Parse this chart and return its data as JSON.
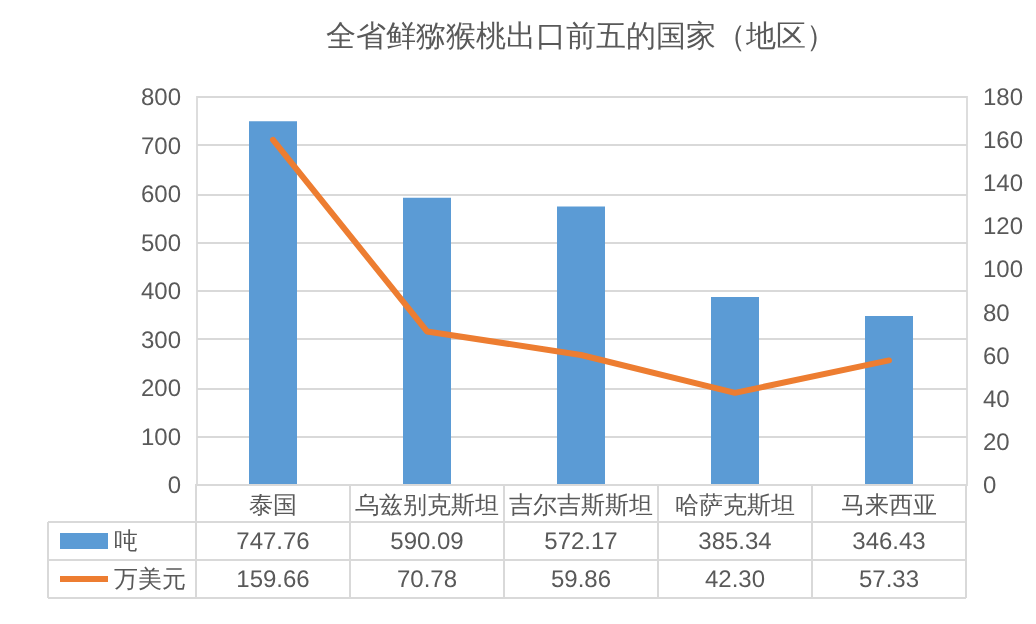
{
  "chart_data": {
    "type": "bar",
    "title": "全省鲜猕猴桃出口前五的国家（地区）",
    "categories": [
      "泰国",
      "乌兹别克斯坦",
      "吉尔吉斯斯坦",
      "哈萨克斯坦",
      "马来西亚"
    ],
    "series": [
      {
        "name": "吨",
        "color": "#5b9bd5",
        "values": [
          747.76,
          590.09,
          572.17,
          385.34,
          346.43
        ],
        "value_labels": [
          "747.76",
          "590.09",
          "572.17",
          "385.34",
          "346.43"
        ]
      },
      {
        "name": "万美元",
        "type": "line",
        "axis": "y2",
        "color": "#ed7d31",
        "values": [
          159.66,
          70.78,
          59.86,
          42.3,
          57.33
        ],
        "value_labels": [
          "159.66",
          "70.78",
          "59.86",
          "42.30",
          "57.33"
        ]
      }
    ],
    "ylim": [
      0,
      800
    ],
    "yticks": [
      0,
      100,
      200,
      300,
      400,
      500,
      600,
      700,
      800
    ],
    "y2lim": [
      0,
      180
    ],
    "y2ticks": [
      0,
      20,
      40,
      60,
      80,
      100,
      120,
      140,
      160,
      180
    ],
    "grid": "y",
    "legend": "bottom"
  }
}
